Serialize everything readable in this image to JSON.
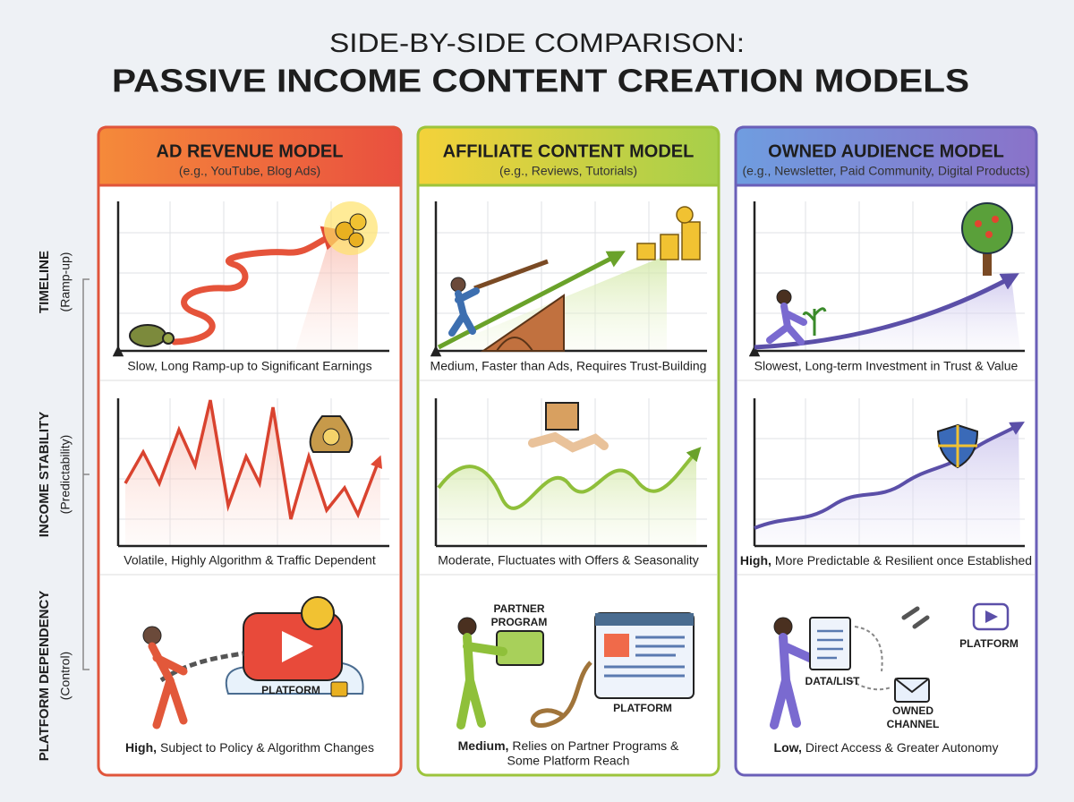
{
  "title": {
    "line1": "SIDE-BY-SIDE COMPARISON:",
    "line2": "PASSIVE INCOME CONTENT CREATION MODELS"
  },
  "rows": [
    {
      "label": "TIMELINE",
      "sublabel": "(Ramp-up)"
    },
    {
      "label": "INCOME STABILITY",
      "sublabel": "(Predictability)"
    },
    {
      "label": "PLATFORM DEPENDENCY",
      "sublabel": "(Control)"
    }
  ],
  "columns": [
    {
      "title": "AD REVENUE MODEL",
      "subtitle": "(e.g., YouTube, Blog Ads)",
      "captions": [
        "Slow, Long Ramp-up to Significant Earnings",
        "Volatile, Highly Algorithm & Traffic Dependent",
        {
          "bold": "High,",
          "text": "Subject to Policy & Algorithm Changes"
        }
      ],
      "labels": [
        "PLATFORM"
      ]
    },
    {
      "title": "AFFILIATE CONTENT MODEL",
      "subtitle": "(e.g., Reviews, Tutorials)",
      "captions": [
        "Medium, Faster than Ads, Requires Trust-Building",
        "Moderate, Fluctuates with Offers & Seasonality",
        {
          "bold": "Medium,",
          "lines": [
            "Relies on Partner Programs &",
            "Some Platform Reach"
          ]
        }
      ],
      "labels": [
        [
          "PARTNER",
          "PROGRAM"
        ],
        "PLATFORM"
      ]
    },
    {
      "title": "OWNED AUDIENCE MODEL",
      "subtitle": "(e.g., Newsletter, Paid Community, Digital Products)",
      "captions": [
        "Slowest, Long-term Investment in Trust & Value",
        {
          "bold": "High,",
          "text": "More Predictable & Resilient once Established"
        },
        {
          "bold": "Low,",
          "text": "Direct Access & Greater Autonomy"
        }
      ],
      "labels": [
        "DATA/LIST",
        [
          "OWNED",
          "CHANNEL"
        ],
        "PLATFORM"
      ]
    }
  ]
}
